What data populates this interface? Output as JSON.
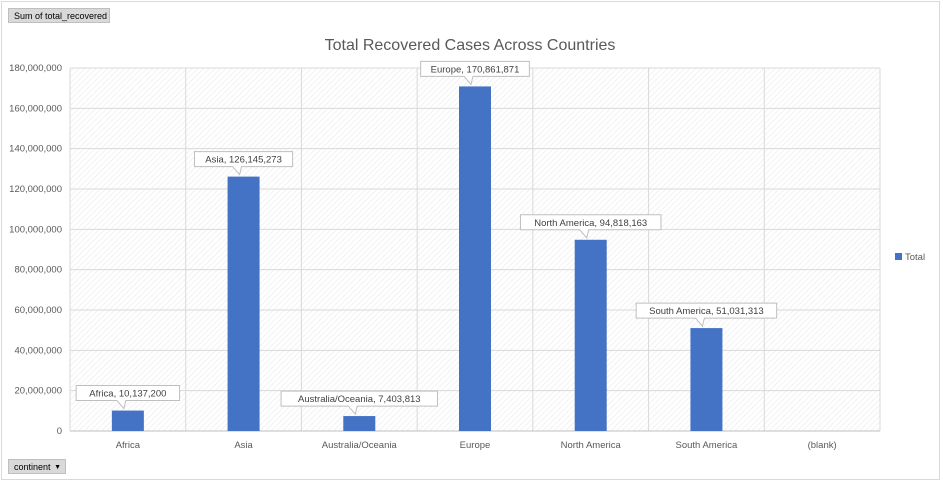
{
  "pivot": {
    "value_field": "Sum of total_recovered",
    "axis_field": "continent"
  },
  "chart_data": {
    "type": "bar",
    "title": "Total Recovered Cases Across Countries",
    "categories": [
      "Africa",
      "Asia",
      "Australia/Oceania",
      "Europe",
      "North America",
      "South America",
      "(blank)"
    ],
    "series": [
      {
        "name": "Total",
        "values": [
          10137200,
          126145273,
          7403813,
          170861871,
          94818163,
          51031313,
          null
        ],
        "color": "#4472c4"
      }
    ],
    "data_labels": [
      "Africa, 10,137,200",
      "Asia, 126,145,273",
      "Australia/Oceania, 7,403,813",
      "Europe, 170,861,871",
      "North America, 94,818,163",
      "South America, 51,031,313",
      ""
    ],
    "yticks": [
      "0",
      "20,000,000",
      "40,000,000",
      "60,000,000",
      "80,000,000",
      "100,000,000",
      "120,000,000",
      "140,000,000",
      "160,000,000",
      "180,000,000"
    ],
    "ylim": [
      0,
      180000000
    ],
    "grid": true,
    "legend": "right"
  }
}
